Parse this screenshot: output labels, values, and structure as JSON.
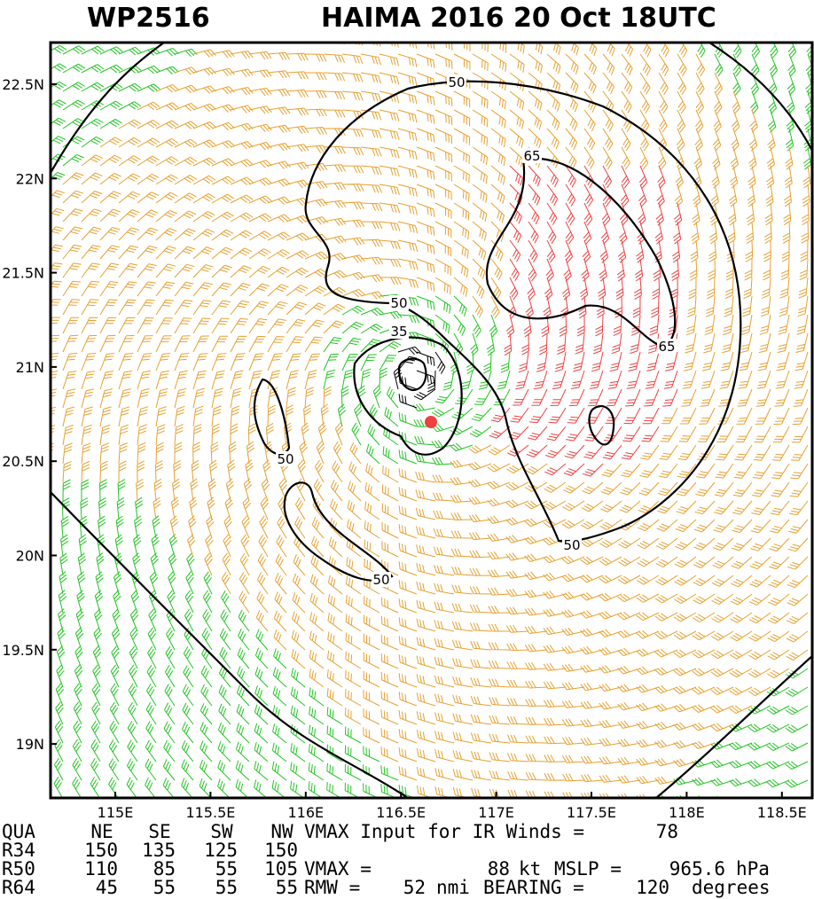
{
  "header": {
    "storm_id": "WP2516",
    "title": "HAIMA 2016 20 Oct 18UTC"
  },
  "map": {
    "lat_labels": [
      "22.5N",
      "22N",
      "21.5N",
      "21N",
      "20.5N",
      "20N",
      "19.5N",
      "19N"
    ],
    "lon_labels": [
      "115E",
      "115.5E",
      "116E",
      "116.5E",
      "117E",
      "117.5E",
      "118E",
      "118.5E"
    ],
    "contour_labels": [
      "50",
      "65",
      "65",
      "50",
      "35",
      "50",
      "50",
      "50"
    ]
  },
  "table": {
    "header": [
      "QUA",
      "NE",
      "SE",
      "SW",
      "NW"
    ],
    "rows": [
      [
        "R34",
        150,
        135,
        125,
        150
      ],
      [
        "R50",
        110,
        85,
        55,
        105
      ],
      [
        "R64",
        45,
        55,
        55,
        55
      ]
    ]
  },
  "info": {
    "vmax_input_label": "VMAX Input for IR Winds =",
    "vmax_input": 78,
    "vmax_label": "VMAX =",
    "vmax": 88,
    "vmax_unit": "kt",
    "mslp_label": "MSLP =",
    "mslp": 965.6,
    "mslp_unit": "hPa",
    "rmw_label": "RMW =",
    "rmw": 52,
    "rmw_unit": "nmi",
    "bearing_label": "BEARING =",
    "bearing": 120,
    "bearing_unit": "degrees"
  }
}
